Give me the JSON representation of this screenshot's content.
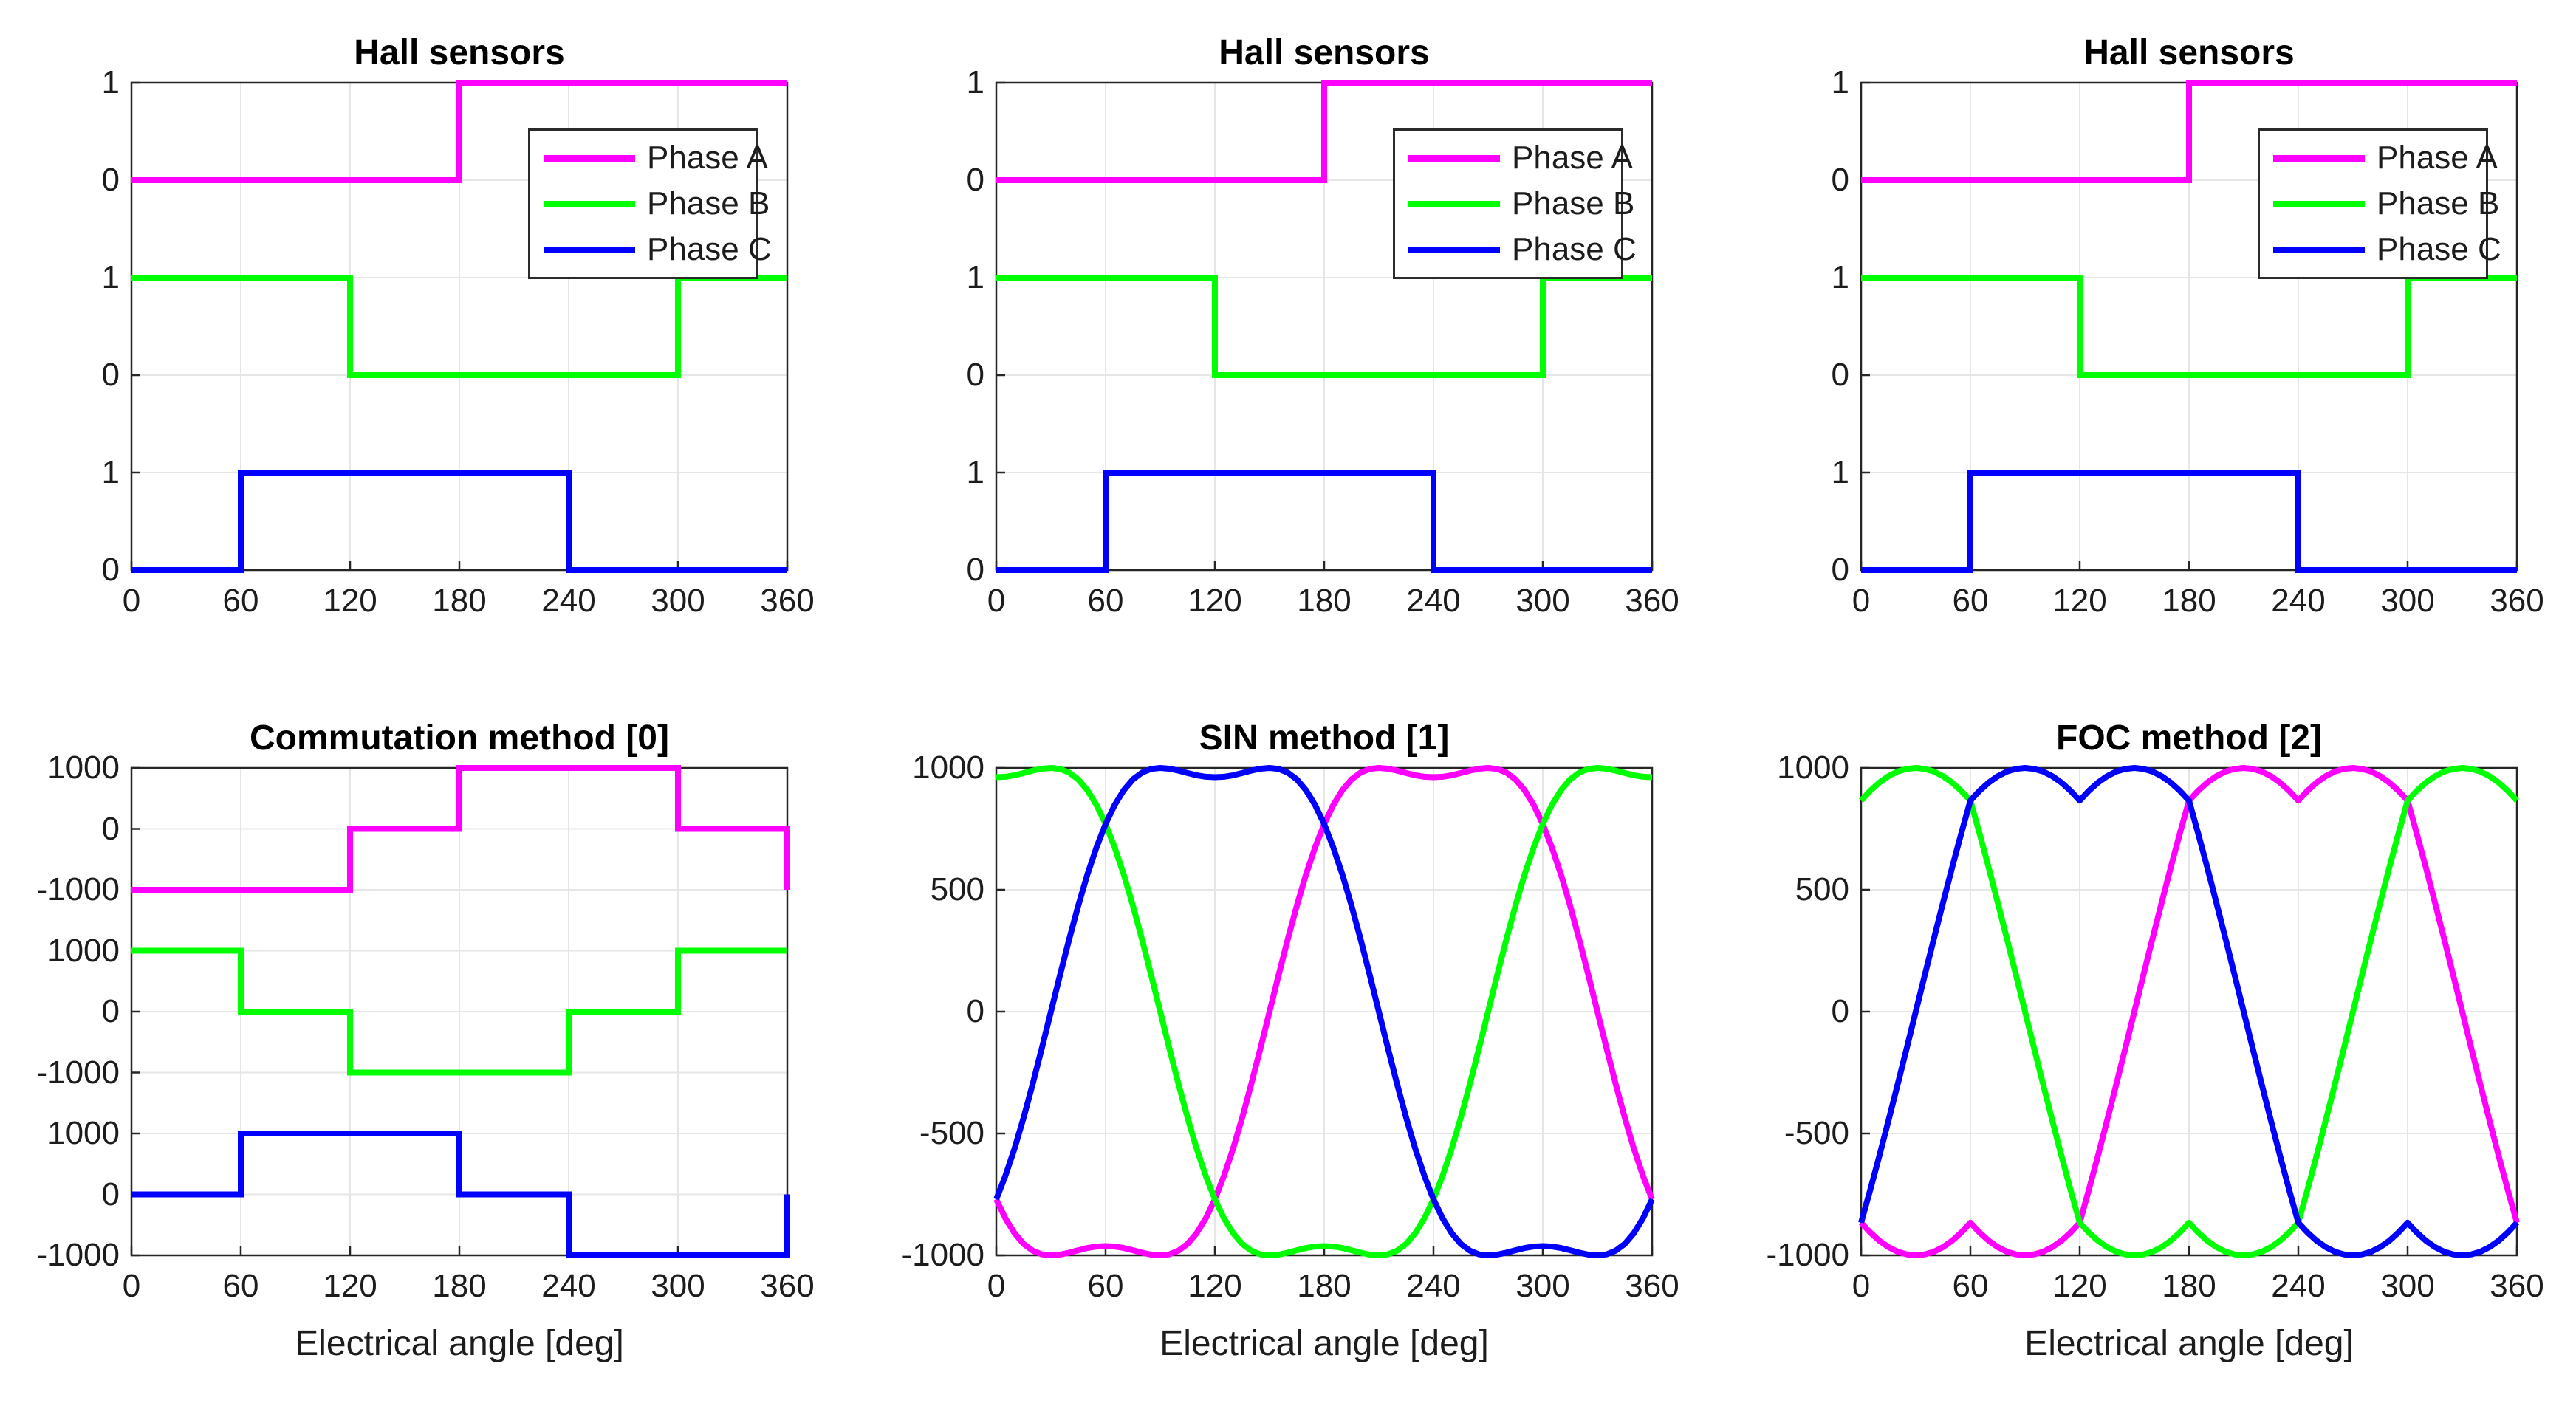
{
  "figure": {
    "background": "#FFFFFF",
    "axis_color": "#262626",
    "grid_color": "#E6E6E6",
    "text_color": "#1c1c1c"
  },
  "phase_colors": {
    "phase_a": "#FF00FF",
    "phase_b": "#00FF00",
    "phase_c": "#0000FF"
  },
  "waveforms": {
    "step_deg": 5,
    "sin3h": [
      0,
      150,
      297,
      435,
      562,
      674,
      770,
      848,
      909,
      953,
      981,
      996,
      1000,
      997,
      989,
      979,
      970,
      964,
      962,
      964,
      970,
      979,
      989,
      997,
      1000,
      996,
      981,
      953,
      909,
      848,
      770,
      674,
      562,
      435,
      297,
      150,
      0,
      -150,
      -297,
      -435,
      -562,
      -674,
      -770,
      -848,
      -909,
      -953,
      -981,
      -996,
      -1000,
      -997,
      -989,
      -979,
      -970,
      -964,
      -962,
      -964,
      -970,
      -979,
      -989,
      -997,
      -1000,
      -996,
      -981,
      -953,
      -909,
      -848,
      -770,
      -674,
      -562,
      -435,
      -297,
      -150
    ],
    "svpwm": [
      0,
      151,
      301,
      448,
      592,
      732,
      866,
      906,
      940,
      966,
      985,
      996,
      1000,
      996,
      985,
      966,
      940,
      906,
      866,
      906,
      940,
      966,
      985,
      996,
      1000,
      996,
      985,
      966,
      940,
      906,
      866,
      732,
      592,
      448,
      301,
      151,
      0,
      -151,
      -301,
      -448,
      -592,
      -732,
      -866,
      -906,
      -940,
      -966,
      -985,
      -996,
      -1000,
      -996,
      -985,
      -966,
      -940,
      -906,
      -866,
      -906,
      -940,
      -966,
      -985,
      -996,
      -1000,
      -996,
      -985,
      -966,
      -940,
      -906,
      -866,
      -732,
      -592,
      -448,
      -301,
      -151
    ]
  },
  "chart_data": [
    {
      "id": "hall-sensors-1",
      "type": "step",
      "title": "Hall sensors",
      "xlim": [
        0,
        360
      ],
      "xticks": [
        0,
        60,
        120,
        180,
        240,
        300,
        360
      ],
      "x_tick_labels": [
        "0",
        "60",
        "120",
        "180",
        "240",
        "300",
        "360"
      ],
      "ylim": [
        0,
        5
      ],
      "yticks": [
        {
          "v": 5,
          "label": "1"
        },
        {
          "v": 4,
          "label": "0"
        },
        {
          "v": 3,
          "label": "1"
        },
        {
          "v": 2,
          "label": "0"
        },
        {
          "v": 1,
          "label": "1"
        },
        {
          "v": 0,
          "label": "0"
        }
      ],
      "legend": {
        "entries": [
          {
            "label": "Phase A",
            "color": "#FF00FF"
          },
          {
            "label": "Phase B",
            "color": "#00FF00"
          },
          {
            "label": "Phase C",
            "color": "#0000FF"
          }
        ]
      },
      "series": [
        {
          "name": "Phase A",
          "color": "#FF00FF",
          "offset": 4,
          "points": [
            [
              0,
              0
            ],
            [
              180,
              1
            ],
            [
              360,
              1
            ]
          ]
        },
        {
          "name": "Phase B",
          "color": "#00FF00",
          "offset": 2,
          "points": [
            [
              0,
              1
            ],
            [
              120,
              0
            ],
            [
              300,
              1
            ],
            [
              360,
              1
            ]
          ]
        },
        {
          "name": "Phase C",
          "color": "#0000FF",
          "offset": 0,
          "points": [
            [
              0,
              0
            ],
            [
              60,
              1
            ],
            [
              240,
              0
            ],
            [
              360,
              0
            ]
          ]
        }
      ]
    },
    {
      "id": "hall-sensors-2",
      "type": "step",
      "title": "Hall sensors",
      "xlim": [
        0,
        360
      ],
      "xticks": [
        0,
        60,
        120,
        180,
        240,
        300,
        360
      ],
      "x_tick_labels": [
        "0",
        "60",
        "120",
        "180",
        "240",
        "300",
        "360"
      ],
      "ylim": [
        0,
        5
      ],
      "yticks": [
        {
          "v": 5,
          "label": "1"
        },
        {
          "v": 4,
          "label": "0"
        },
        {
          "v": 3,
          "label": "1"
        },
        {
          "v": 2,
          "label": "0"
        },
        {
          "v": 1,
          "label": "1"
        },
        {
          "v": 0,
          "label": "0"
        }
      ],
      "legend": {
        "entries": [
          {
            "label": "Phase A",
            "color": "#FF00FF"
          },
          {
            "label": "Phase B",
            "color": "#00FF00"
          },
          {
            "label": "Phase C",
            "color": "#0000FF"
          }
        ]
      },
      "series": [
        {
          "name": "Phase A",
          "color": "#FF00FF",
          "offset": 4,
          "points": [
            [
              0,
              0
            ],
            [
              180,
              1
            ],
            [
              360,
              1
            ]
          ]
        },
        {
          "name": "Phase B",
          "color": "#00FF00",
          "offset": 2,
          "points": [
            [
              0,
              1
            ],
            [
              120,
              0
            ],
            [
              300,
              1
            ],
            [
              360,
              1
            ]
          ]
        },
        {
          "name": "Phase C",
          "color": "#0000FF",
          "offset": 0,
          "points": [
            [
              0,
              0
            ],
            [
              60,
              1
            ],
            [
              240,
              0
            ],
            [
              360,
              0
            ]
          ]
        }
      ]
    },
    {
      "id": "hall-sensors-3",
      "type": "step",
      "title": "Hall sensors",
      "xlim": [
        0,
        360
      ],
      "xticks": [
        0,
        60,
        120,
        180,
        240,
        300,
        360
      ],
      "x_tick_labels": [
        "0",
        "60",
        "120",
        "180",
        "240",
        "300",
        "360"
      ],
      "ylim": [
        0,
        5
      ],
      "yticks": [
        {
          "v": 5,
          "label": "1"
        },
        {
          "v": 4,
          "label": "0"
        },
        {
          "v": 3,
          "label": "1"
        },
        {
          "v": 2,
          "label": "0"
        },
        {
          "v": 1,
          "label": "1"
        },
        {
          "v": 0,
          "label": "0"
        }
      ],
      "legend": {
        "entries": [
          {
            "label": "Phase A",
            "color": "#FF00FF"
          },
          {
            "label": "Phase B",
            "color": "#00FF00"
          },
          {
            "label": "Phase C",
            "color": "#0000FF"
          }
        ]
      },
      "series": [
        {
          "name": "Phase A",
          "color": "#FF00FF",
          "offset": 4,
          "points": [
            [
              0,
              0
            ],
            [
              180,
              1
            ],
            [
              360,
              1
            ]
          ]
        },
        {
          "name": "Phase B",
          "color": "#00FF00",
          "offset": 2,
          "points": [
            [
              0,
              1
            ],
            [
              120,
              0
            ],
            [
              300,
              1
            ],
            [
              360,
              1
            ]
          ]
        },
        {
          "name": "Phase C",
          "color": "#0000FF",
          "offset": 0,
          "points": [
            [
              0,
              0
            ],
            [
              60,
              1
            ],
            [
              240,
              0
            ],
            [
              360,
              0
            ]
          ]
        }
      ]
    },
    {
      "id": "commutation-method",
      "type": "step",
      "title": "Commutation method [0]",
      "xlabel": "Electrical angle [deg]",
      "xlim": [
        0,
        360
      ],
      "xticks": [
        0,
        60,
        120,
        180,
        240,
        300,
        360
      ],
      "x_tick_labels": [
        "0",
        "60",
        "120",
        "180",
        "240",
        "300",
        "360"
      ],
      "ylim": [
        0,
        8000
      ],
      "yticks": [
        {
          "v": 8000,
          "label": "1000"
        },
        {
          "v": 7000,
          "label": "0"
        },
        {
          "v": 6000,
          "label": "-1000"
        },
        {
          "v": 5000,
          "label": "1000"
        },
        {
          "v": 4000,
          "label": "0"
        },
        {
          "v": 3000,
          "label": "-1000"
        },
        {
          "v": 2000,
          "label": "1000"
        },
        {
          "v": 1000,
          "label": "0"
        },
        {
          "v": 0,
          "label": "-1000"
        }
      ],
      "series": [
        {
          "name": "Phase A",
          "color": "#FF00FF",
          "offset": 7000,
          "points": [
            [
              0,
              -1000
            ],
            [
              120,
              0
            ],
            [
              180,
              1000
            ],
            [
              300,
              0
            ],
            [
              360,
              -1000
            ]
          ]
        },
        {
          "name": "Phase B",
          "color": "#00FF00",
          "offset": 4000,
          "points": [
            [
              0,
              1000
            ],
            [
              60,
              0
            ],
            [
              120,
              -1000
            ],
            [
              240,
              0
            ],
            [
              300,
              1000
            ],
            [
              360,
              1000
            ]
          ]
        },
        {
          "name": "Phase C",
          "color": "#0000FF",
          "offset": 1000,
          "points": [
            [
              0,
              0
            ],
            [
              60,
              1000
            ],
            [
              180,
              0
            ],
            [
              240,
              -1000
            ],
            [
              360,
              0
            ]
          ]
        }
      ]
    },
    {
      "id": "sin-method",
      "type": "curve",
      "title": "SIN method [1]",
      "xlabel": "Electrical angle [deg]",
      "xlim": [
        0,
        360
      ],
      "xticks": [
        0,
        60,
        120,
        180,
        240,
        300,
        360
      ],
      "x_tick_labels": [
        "0",
        "60",
        "120",
        "180",
        "240",
        "300",
        "360"
      ],
      "ylim": [
        -1000,
        1000
      ],
      "yticks": [
        {
          "v": 1000,
          "label": "1000"
        },
        {
          "v": 500,
          "label": "500"
        },
        {
          "v": 0,
          "label": "0"
        },
        {
          "v": -500,
          "label": "-500"
        },
        {
          "v": -1000,
          "label": "-1000"
        }
      ],
      "base_waveform": "sin3h",
      "series": [
        {
          "name": "Phase A",
          "color": "#FF00FF",
          "shift_deg": 150
        },
        {
          "name": "Phase B",
          "color": "#00FF00",
          "shift_deg": 270
        },
        {
          "name": "Phase C",
          "color": "#0000FF",
          "shift_deg": 30
        }
      ]
    },
    {
      "id": "foc-method",
      "type": "curve",
      "title": "FOC method [2]",
      "xlabel": "Electrical angle [deg]",
      "xlim": [
        0,
        360
      ],
      "xticks": [
        0,
        60,
        120,
        180,
        240,
        300,
        360
      ],
      "x_tick_labels": [
        "0",
        "60",
        "120",
        "180",
        "240",
        "300",
        "360"
      ],
      "ylim": [
        -1000,
        1000
      ],
      "yticks": [
        {
          "v": 1000,
          "label": "1000"
        },
        {
          "v": 500,
          "label": "500"
        },
        {
          "v": 0,
          "label": "0"
        },
        {
          "v": -500,
          "label": "-500"
        },
        {
          "v": -1000,
          "label": "-1000"
        }
      ],
      "base_waveform": "svpwm",
      "series": [
        {
          "name": "Phase A",
          "color": "#FF00FF",
          "shift_deg": 150
        },
        {
          "name": "Phase B",
          "color": "#00FF00",
          "shift_deg": 270
        },
        {
          "name": "Phase C",
          "color": "#0000FF",
          "shift_deg": 30
        }
      ]
    }
  ]
}
